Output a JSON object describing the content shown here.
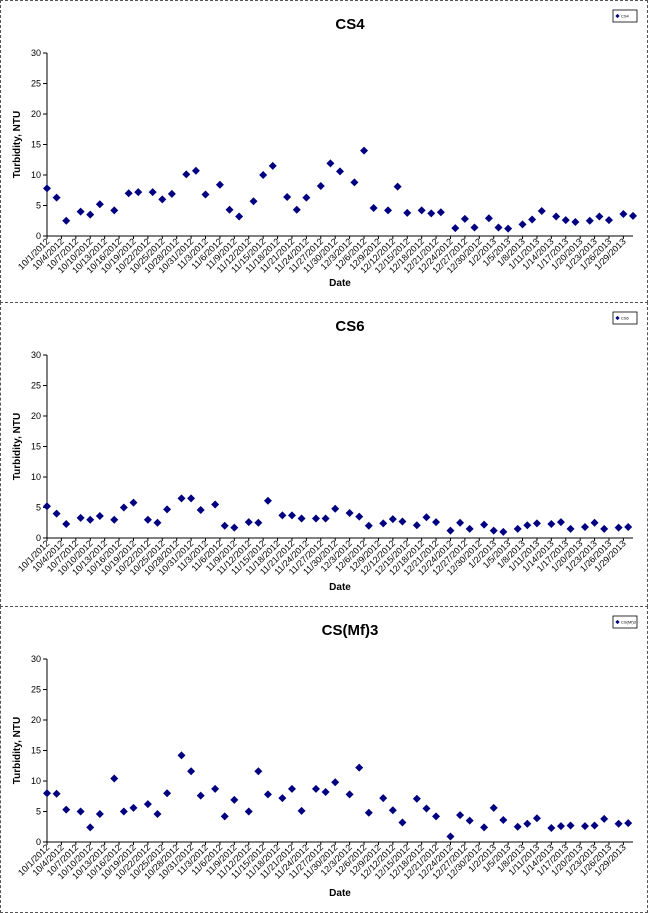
{
  "chart_data": [
    {
      "type": "scatter",
      "title": "CS4",
      "xlabel": "Date",
      "ylabel": "Turbidity, NTU",
      "legend": "CS4",
      "legend_position": "top-right",
      "ylim": [
        0,
        30
      ],
      "yticks": [
        0,
        5,
        10,
        15,
        20,
        25,
        30
      ],
      "xlim": [
        "10/1/2012",
        "1/31/2013"
      ],
      "xtick_labels": [
        "10/1/2012",
        "10/4/2012",
        "10/7/2012",
        "10/10/2012",
        "10/13/2012",
        "10/16/2012",
        "10/19/2012",
        "10/22/2012",
        "10/25/2012",
        "10/28/2012",
        "10/31/2012",
        "11/3/2012",
        "11/6/2012",
        "11/9/2012",
        "11/12/2012",
        "11/15/2012",
        "11/18/2012",
        "11/21/2012",
        "11/24/2012",
        "11/27/2012",
        "11/30/2012",
        "12/3/2012",
        "12/6/2012",
        "12/9/2012",
        "12/12/2012",
        "12/15/2012",
        "12/18/2012",
        "12/21/2012",
        "12/24/2012",
        "12/27/2012",
        "12/30/2012",
        "1/2/2013",
        "1/5/2013",
        "1/8/2013",
        "1/11/2013",
        "1/14/2013",
        "1/17/2013",
        "1/20/2013",
        "1/23/2013",
        "1/26/2013",
        "1/29/2013"
      ],
      "color": "#000080",
      "x": [
        "10/1/2012",
        "10/3/2012",
        "10/5/2012",
        "10/8/2012",
        "10/10/2012",
        "10/12/2012",
        "10/15/2012",
        "10/18/2012",
        "10/20/2012",
        "10/23/2012",
        "10/25/2012",
        "10/27/2012",
        "10/30/2012",
        "11/1/2012",
        "11/3/2012",
        "11/6/2012",
        "11/8/2012",
        "11/10/2012",
        "11/13/2012",
        "11/15/2012",
        "11/17/2012",
        "11/20/2012",
        "11/22/2012",
        "11/24/2012",
        "11/27/2012",
        "11/29/2012",
        "12/1/2012",
        "12/4/2012",
        "12/6/2012",
        "12/8/2012",
        "12/11/2012",
        "12/13/2012",
        "12/15/2012",
        "12/18/2012",
        "12/20/2012",
        "12/22/2012",
        "12/25/2012",
        "12/27/2012",
        "12/29/2012",
        "1/1/2013",
        "1/3/2013",
        "1/5/2013",
        "1/8/2013",
        "1/10/2013",
        "1/12/2013",
        "1/15/2013",
        "1/17/2013",
        "1/19/2013",
        "1/22/2013",
        "1/24/2013",
        "1/26/2013",
        "1/29/2013",
        "1/31/2013"
      ],
      "y": [
        7.8,
        6.3,
        2.5,
        4.0,
        3.5,
        5.2,
        4.2,
        7.0,
        7.2,
        7.2,
        6.0,
        6.9,
        10.1,
        10.7,
        6.8,
        8.4,
        4.3,
        3.2,
        5.7,
        10.0,
        11.5,
        6.4,
        4.3,
        6.3,
        8.2,
        11.9,
        10.6,
        8.8,
        14.0,
        4.6,
        4.2,
        8.1,
        3.8,
        4.2,
        3.7,
        3.9,
        1.3,
        2.8,
        1.4,
        2.9,
        1.4,
        1.2,
        1.9,
        2.7,
        4.1,
        3.2,
        2.6,
        2.3,
        2.5,
        3.2,
        2.6,
        3.6,
        3.3
      ]
    },
    {
      "type": "scatter",
      "title": "CS6",
      "xlabel": "Date",
      "ylabel": "Turbidity, NTU",
      "legend": "CS6",
      "legend_position": "top-right",
      "ylim": [
        0,
        30
      ],
      "yticks": [
        0,
        5,
        10,
        15,
        20,
        25,
        30
      ],
      "xlim": [
        "10/1/2012",
        "1/31/2013"
      ],
      "xtick_labels": [
        "10/1/2012",
        "10/4/2012",
        "10/7/2012",
        "10/10/2012",
        "10/13/2012",
        "10/16/2012",
        "10/19/2012",
        "10/22/2012",
        "10/25/2012",
        "10/28/2012",
        "10/31/2012",
        "11/3/2012",
        "11/6/2012",
        "11/9/2012",
        "11/12/2012",
        "11/15/2012",
        "11/18/2012",
        "11/21/2012",
        "11/24/2012",
        "11/27/2012",
        "11/30/2012",
        "12/3/2012",
        "12/6/2012",
        "12/9/2012",
        "12/12/2012",
        "12/15/2012",
        "12/18/2012",
        "12/21/2012",
        "12/24/2012",
        "12/27/2012",
        "12/30/2012",
        "1/2/2013",
        "1/5/2013",
        "1/8/2013",
        "1/11/2013",
        "1/14/2013",
        "1/17/2013",
        "1/20/2013",
        "1/23/2013",
        "1/26/2013",
        "1/29/2013"
      ],
      "color": "#000080",
      "x": [
        "10/1/2012",
        "10/3/2012",
        "10/5/2012",
        "10/8/2012",
        "10/10/2012",
        "10/12/2012",
        "10/15/2012",
        "10/17/2012",
        "10/19/2012",
        "10/22/2012",
        "10/24/2012",
        "10/26/2012",
        "10/29/2012",
        "10/31/2012",
        "11/2/2012",
        "11/5/2012",
        "11/7/2012",
        "11/9/2012",
        "11/12/2012",
        "11/14/2012",
        "11/16/2012",
        "11/19/2012",
        "11/21/2012",
        "11/23/2012",
        "11/26/2012",
        "11/28/2012",
        "11/30/2012",
        "12/3/2012",
        "12/5/2012",
        "12/7/2012",
        "12/10/2012",
        "12/12/2012",
        "12/14/2012",
        "12/17/2012",
        "12/19/2012",
        "12/21/2012",
        "12/24/2012",
        "12/26/2012",
        "12/28/2012",
        "12/31/2012",
        "1/2/2013",
        "1/4/2013",
        "1/7/2013",
        "1/9/2013",
        "1/11/2013",
        "1/14/2013",
        "1/16/2013",
        "1/18/2013",
        "1/21/2013",
        "1/23/2013",
        "1/25/2013",
        "1/28/2013",
        "1/30/2013"
      ],
      "y": [
        5.2,
        4.0,
        2.3,
        3.3,
        3.0,
        3.6,
        3.0,
        5.0,
        5.8,
        3.0,
        2.5,
        4.7,
        6.5,
        6.5,
        4.6,
        5.5,
        2.0,
        1.7,
        2.6,
        2.5,
        6.1,
        3.7,
        3.7,
        3.2,
        3.2,
        3.2,
        4.8,
        4.1,
        3.5,
        2.0,
        2.4,
        3.1,
        2.7,
        2.1,
        3.4,
        2.6,
        1.2,
        2.5,
        1.5,
        2.2,
        1.2,
        1.0,
        1.5,
        2.1,
        2.4,
        2.3,
        2.6,
        1.5,
        1.8,
        2.5,
        1.5,
        1.7,
        1.8
      ]
    },
    {
      "type": "scatter",
      "title": "CS(Mf)3",
      "xlabel": "Date",
      "ylabel": "Turbidity, NTU",
      "legend": "CS(Mf)3",
      "legend_position": "top-right",
      "ylim": [
        0,
        30
      ],
      "yticks": [
        0,
        5,
        10,
        15,
        20,
        25,
        30
      ],
      "xlim": [
        "10/1/2012",
        "1/31/2013"
      ],
      "xtick_labels": [
        "10/1/2012",
        "10/4/2012",
        "10/7/2012",
        "10/10/2012",
        "10/13/2012",
        "10/16/2012",
        "10/19/2012",
        "10/22/2012",
        "10/25/2012",
        "10/28/2012",
        "10/31/2012",
        "11/3/2012",
        "11/6/2012",
        "11/9/2012",
        "11/12/2012",
        "11/15/2012",
        "11/18/2012",
        "11/21/2012",
        "11/24/2012",
        "11/27/2012",
        "11/30/2012",
        "12/3/2012",
        "12/6/2012",
        "12/9/2012",
        "12/12/2012",
        "12/15/2012",
        "12/18/2012",
        "12/21/2012",
        "12/24/2012",
        "12/27/2012",
        "12/30/2012",
        "1/2/2013",
        "1/5/2013",
        "1/8/2013",
        "1/11/2013",
        "1/14/2013",
        "1/17/2013",
        "1/20/2013",
        "1/23/2013",
        "1/26/2013",
        "1/29/2013"
      ],
      "color": "#000080",
      "x": [
        "10/1/2012",
        "10/3/2012",
        "10/5/2012",
        "10/8/2012",
        "10/10/2012",
        "10/12/2012",
        "10/15/2012",
        "10/17/2012",
        "10/19/2012",
        "10/22/2012",
        "10/24/2012",
        "10/26/2012",
        "10/29/2012",
        "10/31/2012",
        "11/2/2012",
        "11/5/2012",
        "11/7/2012",
        "11/9/2012",
        "11/12/2012",
        "11/14/2012",
        "11/16/2012",
        "11/19/2012",
        "11/21/2012",
        "11/23/2012",
        "11/26/2012",
        "11/28/2012",
        "11/30/2012",
        "12/3/2012",
        "12/5/2012",
        "12/7/2012",
        "12/10/2012",
        "12/12/2012",
        "12/14/2012",
        "12/17/2012",
        "12/19/2012",
        "12/21/2012",
        "12/24/2012",
        "12/26/2012",
        "12/28/2012",
        "12/31/2012",
        "1/2/2013",
        "1/4/2013",
        "1/7/2013",
        "1/9/2013",
        "1/11/2013",
        "1/14/2013",
        "1/16/2013",
        "1/18/2013",
        "1/21/2013",
        "1/23/2013",
        "1/25/2013",
        "1/28/2013",
        "1/30/2013"
      ],
      "y": [
        8.0,
        7.9,
        5.3,
        5.0,
        2.4,
        4.6,
        10.4,
        5.0,
        5.6,
        6.2,
        4.6,
        8.0,
        14.2,
        11.6,
        7.6,
        8.7,
        4.2,
        6.9,
        5.0,
        11.6,
        7.8,
        7.2,
        8.7,
        5.1,
        8.7,
        8.2,
        9.8,
        7.8,
        12.2,
        4.8,
        7.2,
        5.2,
        3.2,
        7.1,
        5.5,
        4.2,
        0.9,
        4.4,
        3.5,
        2.4,
        5.6,
        3.6,
        2.5,
        3.0,
        3.9,
        2.3,
        2.6,
        2.7,
        2.6,
        2.7,
        3.8,
        3.0,
        3.1
      ]
    }
  ]
}
